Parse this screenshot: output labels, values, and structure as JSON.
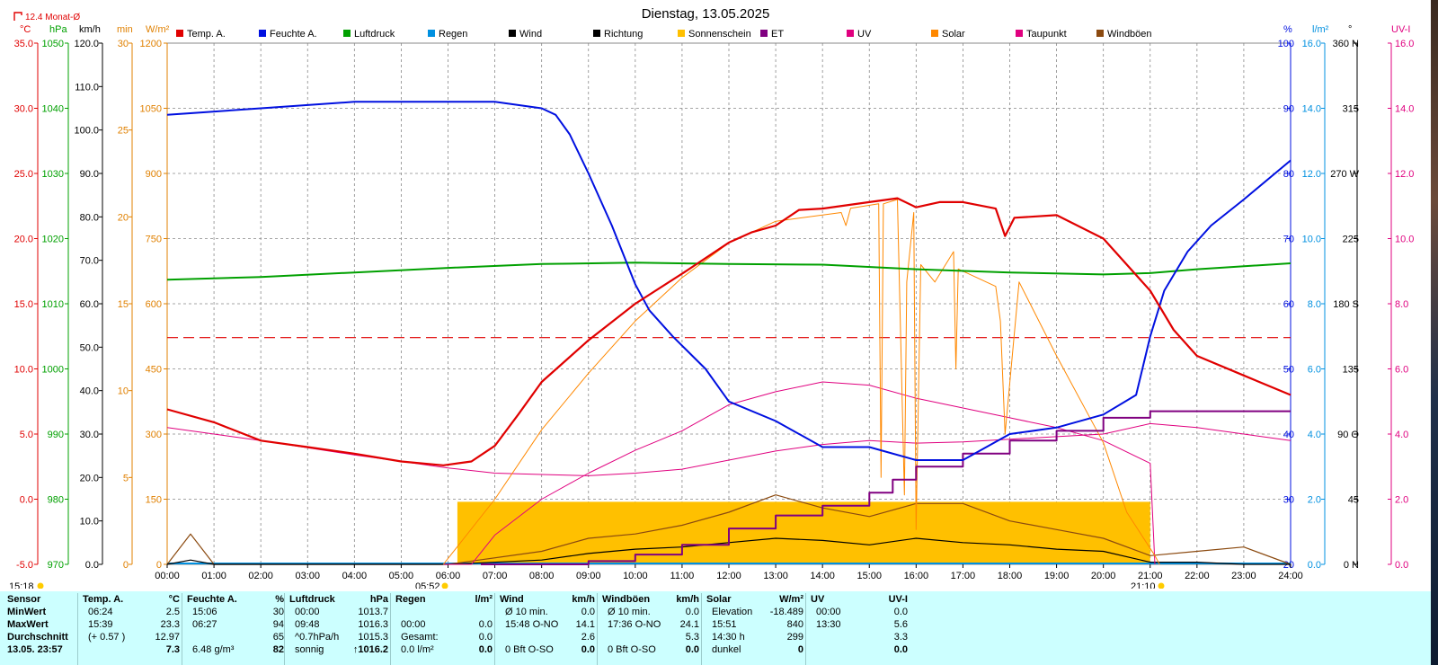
{
  "chart_data": {
    "type": "line",
    "title": "Dienstag, 13.05.2025",
    "monthly_avg_label": "12.4 Monat-Ø",
    "x_ticks": [
      "00:00",
      "01:00",
      "02:00",
      "03:00",
      "04:00",
      "05:00",
      "06:00",
      "07:00",
      "08:00",
      "09:00",
      "10:00",
      "11:00",
      "12:00",
      "13:00",
      "14:00",
      "15:00",
      "16:00",
      "17:00",
      "18:00",
      "19:00",
      "20:00",
      "21:00",
      "22:00",
      "23:00",
      "24:00"
    ],
    "sunrise": "05:52",
    "sunset": "21:10",
    "legend": [
      {
        "label": "Temp. A.",
        "color": "#e00000"
      },
      {
        "label": "Feuchte A.",
        "color": "#0010e0"
      },
      {
        "label": "Luftdruck",
        "color": "#00a000"
      },
      {
        "label": "Regen",
        "color": "#0090e0"
      },
      {
        "label": "Wind",
        "color": "#000000"
      },
      {
        "label": "Richtung",
        "color": "#000000"
      },
      {
        "label": "Sonnenschein",
        "color": "#ffc000"
      },
      {
        "label": "ET",
        "color": "#800080"
      },
      {
        "label": "UV",
        "color": "#e0007f"
      },
      {
        "label": "Solar",
        "color": "#ff8800"
      },
      {
        "label": "Taupunkt",
        "color": "#e0007f"
      },
      {
        "label": "Windböen",
        "color": "#8b4a10"
      }
    ],
    "axes": {
      "temp": {
        "unit": "°C",
        "color": "#e00000",
        "ticks": [
          "35.0",
          "30.0",
          "25.0",
          "20.0",
          "15.0",
          "10.0",
          "5.0",
          "0.0",
          "-5.0"
        ]
      },
      "pressure": {
        "unit": "hPa",
        "color": "#00a000",
        "ticks": [
          "1050",
          "1040",
          "1030",
          "1020",
          "1010",
          "1000",
          "990",
          "980",
          "970"
        ]
      },
      "wind": {
        "unit": "km/h",
        "color": "#000000",
        "ticks": [
          "120.0",
          "110.0",
          "100.0",
          "90.0",
          "80.0",
          "70.0",
          "60.0",
          "50.0",
          "40.0",
          "30.0",
          "20.0",
          "10.0",
          "0.0"
        ]
      },
      "sunshine": {
        "unit": "min",
        "color": "#e08000",
        "ticks": [
          "30",
          "25",
          "20",
          "15",
          "10",
          "5",
          "0"
        ]
      },
      "solar": {
        "unit": "W/m²",
        "color": "#e08000",
        "ticks": [
          "1200",
          "1050",
          "900",
          "750",
          "600",
          "450",
          "300",
          "150",
          "0"
        ]
      },
      "humidity": {
        "unit": "%",
        "color": "#0010e0",
        "ticks": [
          "100",
          "90",
          "80",
          "70",
          "60",
          "50",
          "40",
          "30",
          "20"
        ]
      },
      "rain": {
        "unit": "l/m²",
        "color": "#0090e0",
        "ticks": [
          "16.0",
          "14.0",
          "12.0",
          "10.0",
          "8.0",
          "6.0",
          "4.0",
          "2.0",
          "0.0"
        ]
      },
      "direction": {
        "unit": "°",
        "color": "#000000",
        "ticks": [
          "360 N",
          "315",
          "270 W",
          "225",
          "180 S",
          "135",
          "90 O",
          "45",
          "0 N"
        ]
      },
      "uv": {
        "unit": "UV-I",
        "color": "#e0007f",
        "ticks": [
          "16.0",
          "14.0",
          "12.0",
          "10.0",
          "8.0",
          "6.0",
          "4.0",
          "2.0",
          "0.0"
        ]
      }
    },
    "series": {
      "temp_c": {
        "x_hours": [
          0,
          1,
          2,
          3,
          4,
          5,
          5.9,
          6.5,
          7,
          7.5,
          8,
          9,
          10,
          11,
          12,
          12.5,
          13,
          13.5,
          14,
          15,
          15.6,
          16,
          16.5,
          17,
          17.7,
          17.9,
          18.1,
          19,
          20,
          21,
          21.5,
          22,
          23,
          24
        ],
        "y": [
          6.9,
          5.9,
          4.5,
          4.0,
          3.5,
          2.9,
          2.6,
          2.9,
          4.1,
          6.5,
          9.0,
          12.2,
          15.0,
          17.3,
          19.7,
          20.5,
          21.0,
          22.2,
          22.3,
          22.8,
          23.1,
          22.4,
          22.8,
          22.8,
          22.3,
          20.2,
          21.6,
          21.8,
          20.0,
          16.0,
          13.0,
          11.0,
          9.5,
          8.0
        ]
      },
      "humidity_pct": {
        "x_hours": [
          0,
          2,
          4,
          6,
          7,
          8,
          8.3,
          8.6,
          9,
          9.5,
          10,
          10.3,
          10.8,
          11.5,
          12,
          13,
          14,
          15,
          16,
          17,
          18,
          19,
          20,
          20.7,
          21,
          21.3,
          21.8,
          22.3,
          23,
          24
        ],
        "y": [
          89,
          90,
          91,
          91,
          91,
          90,
          89,
          86,
          80,
          72,
          63,
          59,
          55,
          50,
          45,
          42,
          38,
          38,
          36,
          36,
          40,
          41,
          43,
          46,
          55,
          62,
          68,
          72,
          76,
          82
        ]
      },
      "pressure_hpa": {
        "x_hours": [
          0,
          2,
          4,
          6,
          8,
          10,
          12,
          14,
          16,
          18,
          20,
          21,
          22,
          24
        ],
        "y": [
          1013.7,
          1014.1,
          1014.8,
          1015.5,
          1016.1,
          1016.3,
          1016.1,
          1016.0,
          1015.3,
          1014.8,
          1014.5,
          1014.7,
          1015.3,
          1016.2
        ]
      },
      "dewpoint_c": {
        "x_hours": [
          0,
          2,
          4,
          6,
          7,
          8,
          9,
          10,
          11,
          12,
          13,
          14,
          15,
          16,
          17,
          18,
          19,
          20,
          21,
          22,
          23,
          24
        ],
        "y": [
          5.5,
          4.5,
          3.4,
          2.4,
          2.0,
          1.9,
          1.8,
          2.0,
          2.3,
          3.0,
          3.7,
          4.2,
          4.5,
          4.3,
          4.4,
          4.6,
          4.8,
          5.0,
          5.8,
          5.5,
          5.0,
          4.5
        ]
      },
      "solar_wm2": {
        "x_hours": [
          5.9,
          7,
          8,
          9,
          10,
          11,
          12,
          13,
          14.4,
          14.5,
          14.6,
          15.2,
          15.25,
          15.3,
          15.6,
          15.75,
          15.8,
          15.95,
          16.0,
          16.1,
          16.4,
          16.8,
          16.85,
          16.9,
          17.7,
          17.8,
          17.9,
          18.2,
          19,
          20,
          20.5,
          21.1,
          21.2
        ],
        "y": [
          0,
          150,
          310,
          440,
          560,
          660,
          740,
          790,
          810,
          780,
          820,
          830,
          200,
          830,
          840,
          160,
          650,
          810,
          80,
          690,
          650,
          720,
          450,
          680,
          640,
          560,
          300,
          650,
          480,
          280,
          120,
          20,
          0
        ]
      },
      "uv_index": {
        "x_hours": [
          5.9,
          6.5,
          7,
          8,
          9,
          10,
          11,
          12,
          13,
          14,
          15,
          16,
          17,
          18,
          19,
          20,
          21,
          21.1
        ],
        "y": [
          0,
          0,
          0.9,
          2,
          2.8,
          3.5,
          4.1,
          4.9,
          5.3,
          5.6,
          5.5,
          5.1,
          4.8,
          4.5,
          4.2,
          3.8,
          3.1,
          0
        ]
      },
      "et_mm": {
        "x_hours": [
          6.7,
          9,
          10,
          11,
          12,
          13,
          14,
          15,
          15.5,
          16,
          17,
          18,
          19,
          20,
          21,
          24
        ],
        "y": [
          0,
          0.1,
          0.3,
          0.6,
          1.1,
          1.5,
          1.8,
          2.2,
          2.6,
          3.0,
          3.4,
          3.8,
          4.1,
          4.5,
          4.7,
          4.7
        ]
      },
      "sunshine_min": {
        "x_hours": [
          6.2,
          21.0
        ],
        "y": [
          3.6,
          3.6
        ]
      },
      "wind_avg_kmh": {
        "x_hours": [
          0,
          0.5,
          1,
          6,
          8,
          9,
          10,
          11,
          12,
          13,
          14,
          15,
          16,
          17,
          18,
          19,
          20,
          21,
          22,
          23,
          24
        ],
        "y": [
          0,
          1,
          0,
          0,
          1,
          2.5,
          3.5,
          4,
          5,
          6,
          5.5,
          4.5,
          6,
          5,
          4.5,
          3.5,
          3,
          0.5,
          0.5,
          0,
          0
        ]
      },
      "wind_gust_kmh": {
        "x_hours": [
          0,
          0.5,
          1,
          6,
          8,
          9,
          10,
          11,
          12,
          13,
          14,
          15,
          16,
          17,
          18,
          19,
          20,
          21,
          22,
          23,
          24
        ],
        "y": [
          0,
          7,
          0,
          0,
          3,
          6,
          7,
          9,
          12,
          16,
          13,
          11,
          14,
          14,
          10,
          8,
          6,
          2,
          3,
          4,
          0
        ]
      }
    }
  },
  "stats_table": {
    "row_labels": [
      "Sensor",
      "MinWert",
      "MaxWert",
      "Durchschnitt",
      "13.05. 23:57"
    ],
    "sections": [
      {
        "header": "Temp. A.",
        "unit": "°C",
        "rows": [
          [
            "06:24",
            "2.5"
          ],
          [
            "15:39",
            "23.3"
          ],
          [
            "(+ 0.57 )",
            "12.97"
          ],
          [
            "",
            "7.3"
          ]
        ]
      },
      {
        "header": "Feuchte A.",
        "unit": "%",
        "rows": [
          [
            "15:06",
            "30"
          ],
          [
            "06:27",
            "94"
          ],
          [
            "",
            "65"
          ],
          [
            "6.48 g/m³",
            "82"
          ]
        ]
      },
      {
        "header": "Luftdruck",
        "unit": "hPa",
        "rows": [
          [
            "00:00",
            "1013.7"
          ],
          [
            "09:48",
            "1016.3"
          ],
          [
            "^0.7hPa/h",
            "1015.3"
          ],
          [
            "sonnig",
            "↑1016.2"
          ]
        ]
      },
      {
        "header": "Regen",
        "unit": "l/m²",
        "rows": [
          [
            "",
            ""
          ],
          [
            "00:00",
            "0.0"
          ],
          [
            "Gesamt:",
            "0.0"
          ],
          [
            "0.0 l/m²",
            "0.0"
          ]
        ]
      },
      {
        "header": "Wind",
        "unit": "km/h",
        "rows": [
          [
            "Ø 10 min.",
            "0.0"
          ],
          [
            "15:48  O-NO",
            "14.1"
          ],
          [
            "",
            "2.6"
          ],
          [
            "0 Bft O-SO",
            "0.0"
          ]
        ]
      },
      {
        "header": "Windböen",
        "unit": "km/h",
        "rows": [
          [
            "Ø 10 min.",
            "0.0"
          ],
          [
            "17:36  O-NO",
            "24.1"
          ],
          [
            "",
            "5.3"
          ],
          [
            "0 Bft O-SO",
            "0.0"
          ]
        ]
      },
      {
        "header": "Solar",
        "unit": "W/m²",
        "rows": [
          [
            "Elevation",
            "-18.489"
          ],
          [
            "15:51",
            "840"
          ],
          [
            "14:30 h",
            "299"
          ],
          [
            "dunkel",
            "0"
          ]
        ]
      },
      {
        "header": "UV",
        "unit": "UV-I",
        "rows": [
          [
            "00:00",
            "0.0"
          ],
          [
            "13:30",
            "5.6"
          ],
          [
            "",
            "3.3"
          ],
          [
            "",
            "0.0"
          ]
        ]
      }
    ]
  },
  "time_marks": {
    "left_time": "15:18"
  }
}
